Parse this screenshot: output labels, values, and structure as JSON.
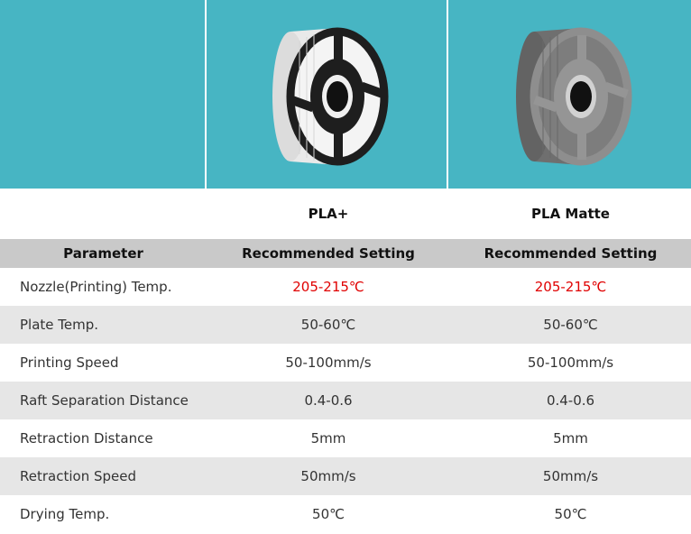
{
  "images": [
    {
      "icon": "empty-panel"
    },
    {
      "icon": "white-filament-spool-icon",
      "spool_color": "#f2f2f2",
      "frame_color": "#1e1e1e"
    },
    {
      "icon": "gray-filament-spool-icon",
      "spool_color": "#7d7d7d",
      "frame_color": "#8e8e8e"
    }
  ],
  "products": [
    "",
    "PLA+",
    "PLA Matte"
  ],
  "table": {
    "headers": [
      "Parameter",
      "Recommended Setting",
      "Recommended Setting"
    ],
    "rows": [
      {
        "param": "Nozzle(Printing) Temp.",
        "pla_plus": "205-215℃",
        "pla_matte": "205-215℃",
        "highlight": true
      },
      {
        "param": "Plate Temp.",
        "pla_plus": "50-60℃",
        "pla_matte": "50-60℃"
      },
      {
        "param": "Printing Speed",
        "pla_plus": "50-100mm/s",
        "pla_matte": "50-100mm/s"
      },
      {
        "param": "Raft Separation Distance",
        "pla_plus": "0.4-0.6",
        "pla_matte": "0.4-0.6"
      },
      {
        "param": "Retraction Distance",
        "pla_plus": "5mm",
        "pla_matte": "5mm"
      },
      {
        "param": "Retraction Speed",
        "pla_plus": "50mm/s",
        "pla_matte": "50mm/s"
      },
      {
        "param": "Drying Temp.",
        "pla_plus": "50℃",
        "pla_matte": "50℃"
      }
    ]
  },
  "colors": {
    "teal_background": "#47b5c3",
    "header_gray": "#c9c9c9",
    "stripe_gray": "#e6e6e6",
    "highlight_red": "#e00000"
  }
}
